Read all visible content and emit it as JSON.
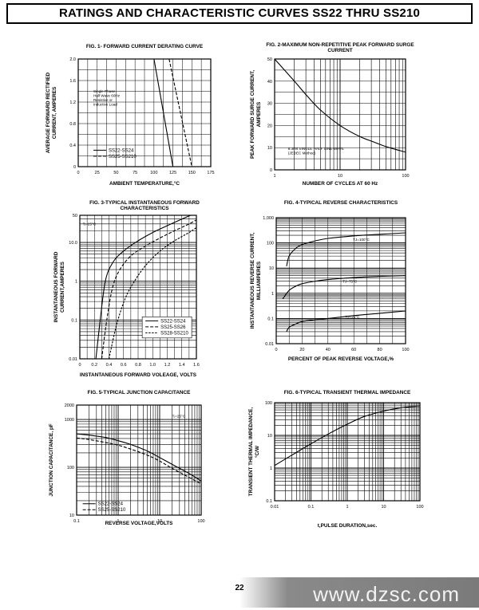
{
  "page": {
    "title": "RATINGS AND CHARACTERISTIC CURVES SS22 THRU SS210",
    "page_number": "22",
    "watermark": "www.dzsc.com"
  },
  "chart_data": [
    {
      "id": "fig1",
      "type": "line",
      "title": "FIG. 1- FORWARD CURRENT DERATING CURVE",
      "xlabel": "AMBIENT TEMPERATURE,°C",
      "ylabel": "AVERAGE FORWARD RECTIFIED CURRENT, AMPERES",
      "xscale": "linear",
      "yscale": "linear",
      "xlim": [
        0,
        175
      ],
      "ylim": [
        0,
        2.0
      ],
      "xticks": [
        0,
        25,
        50,
        75,
        100,
        125,
        150,
        175
      ],
      "xtick_labels": [
        "0",
        "25",
        "50",
        "75",
        "100",
        "125",
        "150",
        "175"
      ],
      "yticks": [
        0,
        0.4,
        0.8,
        1.2,
        1.6,
        2.0
      ],
      "ytick_labels": [
        "0",
        "0.4",
        "0.8",
        "1.2",
        "1.6",
        "2.0"
      ],
      "grid": true,
      "annotations": [
        {
          "lines": [
            "Single Phase",
            "Half Wave 60Hz",
            "Resistive or",
            "Inductive Load"
          ],
          "x": 20,
          "y": 1.38
        }
      ],
      "series": [
        {
          "name": "SS22-SS24",
          "style": "solid",
          "x": [
            0,
            100,
            125
          ],
          "y": [
            2.0,
            2.0,
            0
          ]
        },
        {
          "name": "SS25-SS210",
          "style": "dashed",
          "x": [
            0,
            120,
            150
          ],
          "y": [
            2.0,
            2.0,
            0
          ]
        }
      ],
      "legend": {
        "placement": "bottom-left",
        "anchor": [
          20,
          0.32
        ]
      }
    },
    {
      "id": "fig2",
      "type": "line",
      "title": "FIG. 2-MAXIMUM NON-REPETITIVE PEAK FORWARD SURGE CURRENT",
      "xlabel": "NUMBER OF CYCLES AT 60 Hz",
      "ylabel": "PEAK FORWARD SURGE CURRENT, AMPERES",
      "xscale": "log",
      "yscale": "linear",
      "xlim": [
        1,
        100
      ],
      "ylim": [
        0,
        50
      ],
      "xticks": [
        1,
        10,
        100
      ],
      "xtick_labels": [
        "1",
        "10",
        "100"
      ],
      "yticks": [
        0,
        10,
        20,
        30,
        40,
        50
      ],
      "ytick_labels": [
        "0",
        "10",
        "20",
        "30",
        "40",
        "50"
      ],
      "grid": true,
      "annotations": [
        {
          "lines": [
            "8.3ms SINGLE HALF SINE-WAVE",
            "(JEDEC Method)"
          ],
          "x": 1.6,
          "y": 9
        }
      ],
      "series": [
        {
          "name": "",
          "style": "solid",
          "x": [
            1,
            2,
            3,
            5,
            10,
            20,
            30,
            50,
            100
          ],
          "y": [
            50,
            40,
            34,
            27,
            20,
            15,
            13,
            10.5,
            8
          ]
        }
      ]
    },
    {
      "id": "fig3",
      "type": "line",
      "title": "FIG. 3-TYPICAL INSTANTANEOUS FORWARD CHARACTERISTICS",
      "xlabel": "INSTANTANEOUS FORWARD VOLEAGE, VOLTS",
      "ylabel": "INSTANTANEOUS FORWARD CURRENT,AMPERES",
      "xscale": "linear",
      "yscale": "log",
      "xlim": [
        0,
        1.6
      ],
      "ylim": [
        0.01,
        50
      ],
      "xticks": [
        0,
        0.2,
        0.4,
        0.6,
        0.8,
        1.0,
        1.2,
        1.4,
        1.6
      ],
      "xtick_labels": [
        "0",
        "0.2",
        "0.4",
        "0.6",
        "0.8",
        "1.0",
        "1.2",
        "1.4",
        "1.6"
      ],
      "yticks": [
        0.01,
        0.1,
        1,
        10,
        50
      ],
      "ytick_labels": [
        "0.01",
        "0.1",
        "1",
        "10.0",
        "50"
      ],
      "grid": true,
      "annotations": [
        {
          "lines": [
            "Tⱼ=25°C"
          ],
          "x": 0.04,
          "y": 28
        }
      ],
      "series": [
        {
          "name": "SS22-SS24",
          "style": "solid",
          "x": [
            0.22,
            0.28,
            0.35,
            0.45,
            0.6,
            0.8,
            1.0,
            1.2,
            1.4,
            1.52
          ],
          "y": [
            0.01,
            0.1,
            1,
            3,
            6,
            11,
            18,
            27,
            40,
            50
          ]
        },
        {
          "name": "SS25-SS26",
          "style": "dashed",
          "x": [
            0.3,
            0.37,
            0.45,
            0.55,
            0.7,
            0.9,
            1.1,
            1.3,
            1.5,
            1.6
          ],
          "y": [
            0.01,
            0.1,
            0.7,
            2,
            4.5,
            8,
            13,
            20,
            30,
            38
          ]
        },
        {
          "name": "SS28-SS210",
          "style": "dashed",
          "x": [
            0.4,
            0.5,
            0.62,
            0.75,
            0.9,
            1.1,
            1.3,
            1.5,
            1.6
          ],
          "y": [
            0.01,
            0.07,
            0.35,
            1,
            2.5,
            6,
            11,
            18,
            24
          ]
        }
      ],
      "legend": {
        "placement": "bottom-right",
        "anchor": [
          0.9,
          0.1
        ]
      }
    },
    {
      "id": "fig4",
      "type": "line",
      "title": "FIG. 4-TYPICAL REVERSE CHARACTERISTICS",
      "xlabel": "PERCENT OF PEAK REVERSE VOLTAGE,%",
      "ylabel": "INSTANTANEOUS REVERSE CURRENT, MILLIAMPERES",
      "xscale": "linear",
      "yscale": "log",
      "xlim": [
        0,
        100
      ],
      "ylim": [
        0.01,
        1000
      ],
      "xticks": [
        0,
        20,
        40,
        60,
        80,
        100
      ],
      "xtick_labels": [
        "0",
        "20",
        "40",
        "60",
        "80",
        "100"
      ],
      "yticks": [
        0.01,
        0.1,
        1,
        10,
        100,
        1000
      ],
      "ytick_labels": [
        "0.01",
        "0.1",
        "1",
        "10",
        "100",
        "1,000"
      ],
      "grid": true,
      "series": [
        {
          "name": "TJ=100°C",
          "style": "solid",
          "x": [
            8,
            10,
            15,
            20,
            30,
            40,
            60,
            80,
            100
          ],
          "y": [
            12,
            30,
            60,
            85,
            120,
            150,
            190,
            220,
            250
          ]
        },
        {
          "name": "TJ=75°C",
          "style": "solid",
          "x": [
            5,
            10,
            15,
            20,
            30,
            40,
            60,
            80,
            100
          ],
          "y": [
            0.6,
            1.3,
            1.9,
            2.4,
            3.0,
            3.5,
            4.2,
            4.7,
            5.0
          ]
        },
        {
          "name": "TJ=25°C",
          "style": "solid",
          "x": [
            8,
            10,
            15,
            20,
            30,
            40,
            60,
            80,
            100
          ],
          "y": [
            0.03,
            0.045,
            0.06,
            0.075,
            0.09,
            0.1,
            0.13,
            0.16,
            0.2
          ]
        }
      ]
    },
    {
      "id": "fig5",
      "type": "line",
      "title": "FIG. 5-TYPICAL JUNCTION CAPACITANCE",
      "xlabel": "REVERSE VOLTAGE,VOLTS",
      "ylabel": "JUNCTION CAPACITANCE, pF",
      "xscale": "log",
      "yscale": "log",
      "xlim": [
        0.1,
        100
      ],
      "ylim": [
        10,
        2000
      ],
      "xticks": [
        0.1,
        1,
        10,
        100
      ],
      "xtick_labels": [
        "0.1",
        "1",
        "10",
        "100"
      ],
      "yticks": [
        10,
        100,
        1000,
        2000
      ],
      "ytick_labels": [
        "10",
        "100",
        "1000",
        "2000"
      ],
      "grid": true,
      "annotations": [
        {
          "lines": [
            "Tⱼ=25°C"
          ],
          "x": 20,
          "y": 1100
        }
      ],
      "series": [
        {
          "name": "SS22-SS24",
          "style": "solid",
          "x": [
            0.1,
            0.2,
            0.5,
            1,
            2,
            5,
            10,
            20,
            50,
            100
          ],
          "y": [
            500,
            470,
            420,
            360,
            300,
            220,
            160,
            115,
            75,
            52
          ]
        },
        {
          "name": "SS25-SS210",
          "style": "dashed",
          "x": [
            0.1,
            0.2,
            0.5,
            1,
            2,
            5,
            10,
            20,
            50,
            100
          ],
          "y": [
            410,
            380,
            330,
            290,
            240,
            180,
            135,
            95,
            62,
            45
          ]
        }
      ],
      "legend": {
        "placement": "bottom-left",
        "anchor": [
          0.14,
          18
        ]
      }
    },
    {
      "id": "fig6",
      "type": "line",
      "title": "FIG. 6-TYPICAL TRANSIENT THERMAL IMPEDANCE",
      "xlabel": "t,PULSE DURATION,sec.",
      "ylabel": "TRANSIENT THERMAL IMPEDANCE, °C/W",
      "xscale": "log",
      "yscale": "log",
      "xlim": [
        0.01,
        100
      ],
      "ylim": [
        0.1,
        100
      ],
      "xticks": [
        0.01,
        0.1,
        1,
        10,
        100
      ],
      "xtick_labels": [
        "0.01",
        "0.1",
        "1",
        "10",
        "100"
      ],
      "yticks": [
        0.1,
        1,
        10,
        100
      ],
      "ytick_labels": [
        "0.1",
        "1",
        "10",
        "100"
      ],
      "grid": true,
      "series": [
        {
          "name": "",
          "style": "solid",
          "x": [
            0.01,
            0.03,
            0.1,
            0.3,
            1,
            3,
            10,
            30,
            100
          ],
          "y": [
            1.2,
            2.5,
            5.5,
            11,
            22,
            38,
            55,
            70,
            80
          ]
        }
      ]
    }
  ]
}
